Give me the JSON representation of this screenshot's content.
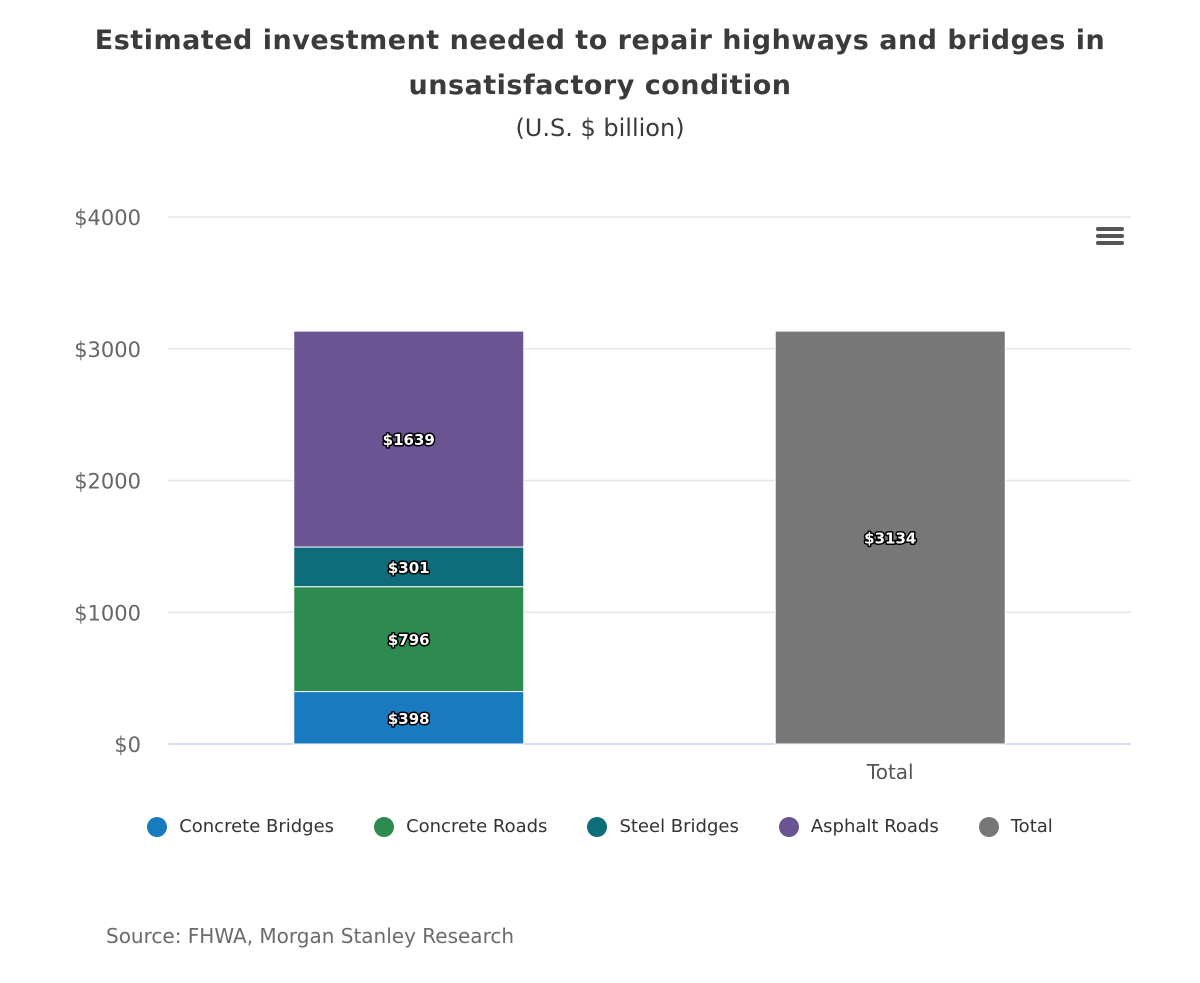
{
  "chart_data": {
    "type": "bar",
    "stacked": true,
    "title": "Estimated investment needed to repair highways and bridges in unsatisfactory condition",
    "subtitle": "(U.S. $ billion)",
    "categories": [
      "",
      "Total"
    ],
    "series": [
      {
        "name": "Concrete Bridges",
        "color": "#1a7abf",
        "values": [
          398,
          null
        ],
        "labels": [
          "$398",
          ""
        ]
      },
      {
        "name": "Concrete Roads",
        "color": "#2e8b4f",
        "values": [
          796,
          null
        ],
        "labels": [
          "$796",
          ""
        ]
      },
      {
        "name": "Steel Bridges",
        "color": "#0e6d78",
        "values": [
          301,
          null
        ],
        "labels": [
          "$301",
          ""
        ]
      },
      {
        "name": "Asphalt Roads",
        "color": "#6b5494",
        "values": [
          1639,
          null
        ],
        "labels": [
          "$1639",
          ""
        ]
      },
      {
        "name": "Total",
        "color": "#777777",
        "values": [
          null,
          3134
        ],
        "labels": [
          "",
          "$3134"
        ]
      }
    ],
    "ylim": [
      0,
      4000
    ],
    "yticks": [
      0,
      1000,
      2000,
      3000,
      4000
    ],
    "ytick_labels": [
      "$0",
      "$1000",
      "$2000",
      "$3000",
      "$4000"
    ],
    "xlabel": "",
    "ylabel": "",
    "grid": true,
    "legend_position": "bottom"
  },
  "source": "Source: FHWA, Morgan Stanley Research",
  "menu": {
    "icon": "hamburger-menu-icon"
  }
}
